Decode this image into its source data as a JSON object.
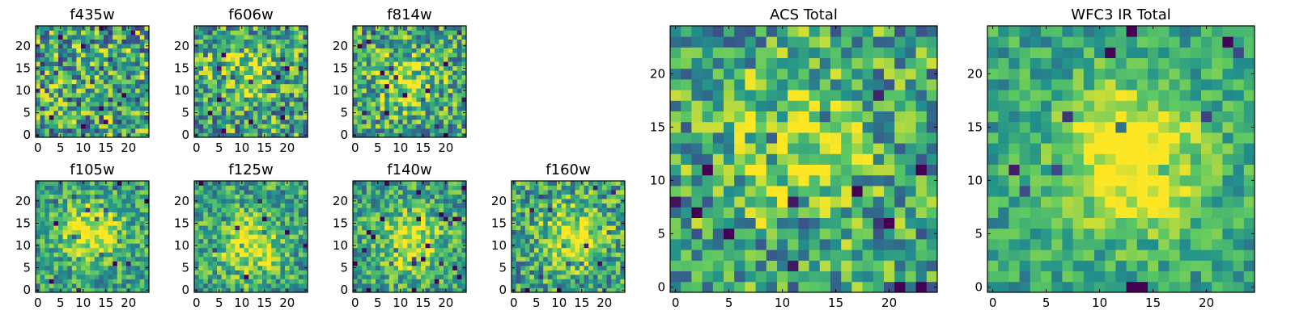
{
  "chart_data": [
    {
      "type": "heatmap",
      "title": "f435w",
      "grid": "25x25",
      "colormap": "viridis",
      "xticks": [
        "0",
        "5",
        "10",
        "15",
        "20"
      ],
      "yticks": [
        "0",
        "5",
        "10",
        "15",
        "20"
      ],
      "xlim": [
        -0.5,
        24.5
      ],
      "ylim": [
        -0.5,
        24.5
      ],
      "source_peak": [
        12,
        12
      ],
      "source_strength": 0.0,
      "noise": 0.42,
      "seed": 11
    },
    {
      "type": "heatmap",
      "title": "f606w",
      "grid": "25x25",
      "colormap": "viridis",
      "xticks": [
        "0",
        "5",
        "10",
        "15",
        "20"
      ],
      "yticks": [
        "0",
        "5",
        "10",
        "15",
        "20"
      ],
      "xlim": [
        -0.5,
        24.5
      ],
      "ylim": [
        -0.5,
        24.5
      ],
      "source_peak": [
        10,
        14
      ],
      "source_strength": 0.25,
      "noise": 0.38,
      "seed": 23
    },
    {
      "type": "heatmap",
      "title": "f814w",
      "grid": "25x25",
      "colormap": "viridis",
      "xticks": [
        "0",
        "5",
        "10",
        "15",
        "20"
      ],
      "yticks": [
        "0",
        "5",
        "10",
        "15",
        "20"
      ],
      "xlim": [
        -0.5,
        24.5
      ],
      "ylim": [
        -0.5,
        24.5
      ],
      "source_peak": [
        11,
        12
      ],
      "source_strength": 0.32,
      "noise": 0.36,
      "seed": 37
    },
    {
      "type": "heatmap",
      "title": "f105w",
      "grid": "25x25",
      "colormap": "viridis",
      "xticks": [
        "0",
        "5",
        "10",
        "15",
        "20"
      ],
      "yticks": [
        "0",
        "5",
        "10",
        "15",
        "20"
      ],
      "xlim": [
        -0.5,
        24.5
      ],
      "ylim": [
        -0.5,
        24.5
      ],
      "source_peak": [
        12,
        13
      ],
      "source_strength": 0.42,
      "noise": 0.26,
      "seed": 41
    },
    {
      "type": "heatmap",
      "title": "f125w",
      "grid": "25x25",
      "colormap": "viridis",
      "xticks": [
        "0",
        "5",
        "10",
        "15",
        "20"
      ],
      "yticks": [
        "0",
        "5",
        "10",
        "15",
        "20"
      ],
      "xlim": [
        -0.5,
        24.5
      ],
      "ylim": [
        -0.5,
        24.5
      ],
      "source_peak": [
        12,
        10
      ],
      "source_strength": 0.42,
      "noise": 0.28,
      "seed": 53
    },
    {
      "type": "heatmap",
      "title": "f140w",
      "grid": "25x25",
      "colormap": "viridis",
      "xticks": [
        "0",
        "5",
        "10",
        "15",
        "20"
      ],
      "yticks": [
        "0",
        "5",
        "10",
        "15",
        "20"
      ],
      "xlim": [
        -0.5,
        24.5
      ],
      "ylim": [
        -0.5,
        24.5
      ],
      "source_peak": [
        12,
        11
      ],
      "source_strength": 0.4,
      "noise": 0.28,
      "seed": 67
    },
    {
      "type": "heatmap",
      "title": "f160w",
      "grid": "25x25",
      "colormap": "viridis",
      "xticks": [
        "0",
        "5",
        "10",
        "15",
        "20"
      ],
      "yticks": [
        "0",
        "5",
        "10",
        "15",
        "20"
      ],
      "xlim": [
        -0.5,
        24.5
      ],
      "ylim": [
        -0.5,
        24.5
      ],
      "source_peak": [
        13,
        12
      ],
      "source_strength": 0.4,
      "noise": 0.32,
      "seed": 79
    },
    {
      "type": "heatmap",
      "title": "ACS Total",
      "grid": "25x25",
      "colormap": "viridis",
      "xticks": [
        "0",
        "5",
        "10",
        "15",
        "20"
      ],
      "yticks": [
        "0",
        "5",
        "10",
        "15",
        "20"
      ],
      "xlim": [
        -0.5,
        24.5
      ],
      "ylim": [
        -0.5,
        24.5
      ],
      "source_peak": [
        11,
        13
      ],
      "source_strength": 0.3,
      "noise": 0.34,
      "seed": 83
    },
    {
      "type": "heatmap",
      "title": "WFC3 IR Total",
      "grid": "25x25",
      "colormap": "viridis",
      "xticks": [
        "0",
        "5",
        "10",
        "15",
        "20"
      ],
      "yticks": [
        "0",
        "5",
        "10",
        "15",
        "20"
      ],
      "xlim": [
        -0.5,
        24.5
      ],
      "ylim": [
        -0.5,
        24.5
      ],
      "source_peak": [
        13,
        12
      ],
      "source_strength": 0.55,
      "noise": 0.2,
      "seed": 97
    }
  ]
}
